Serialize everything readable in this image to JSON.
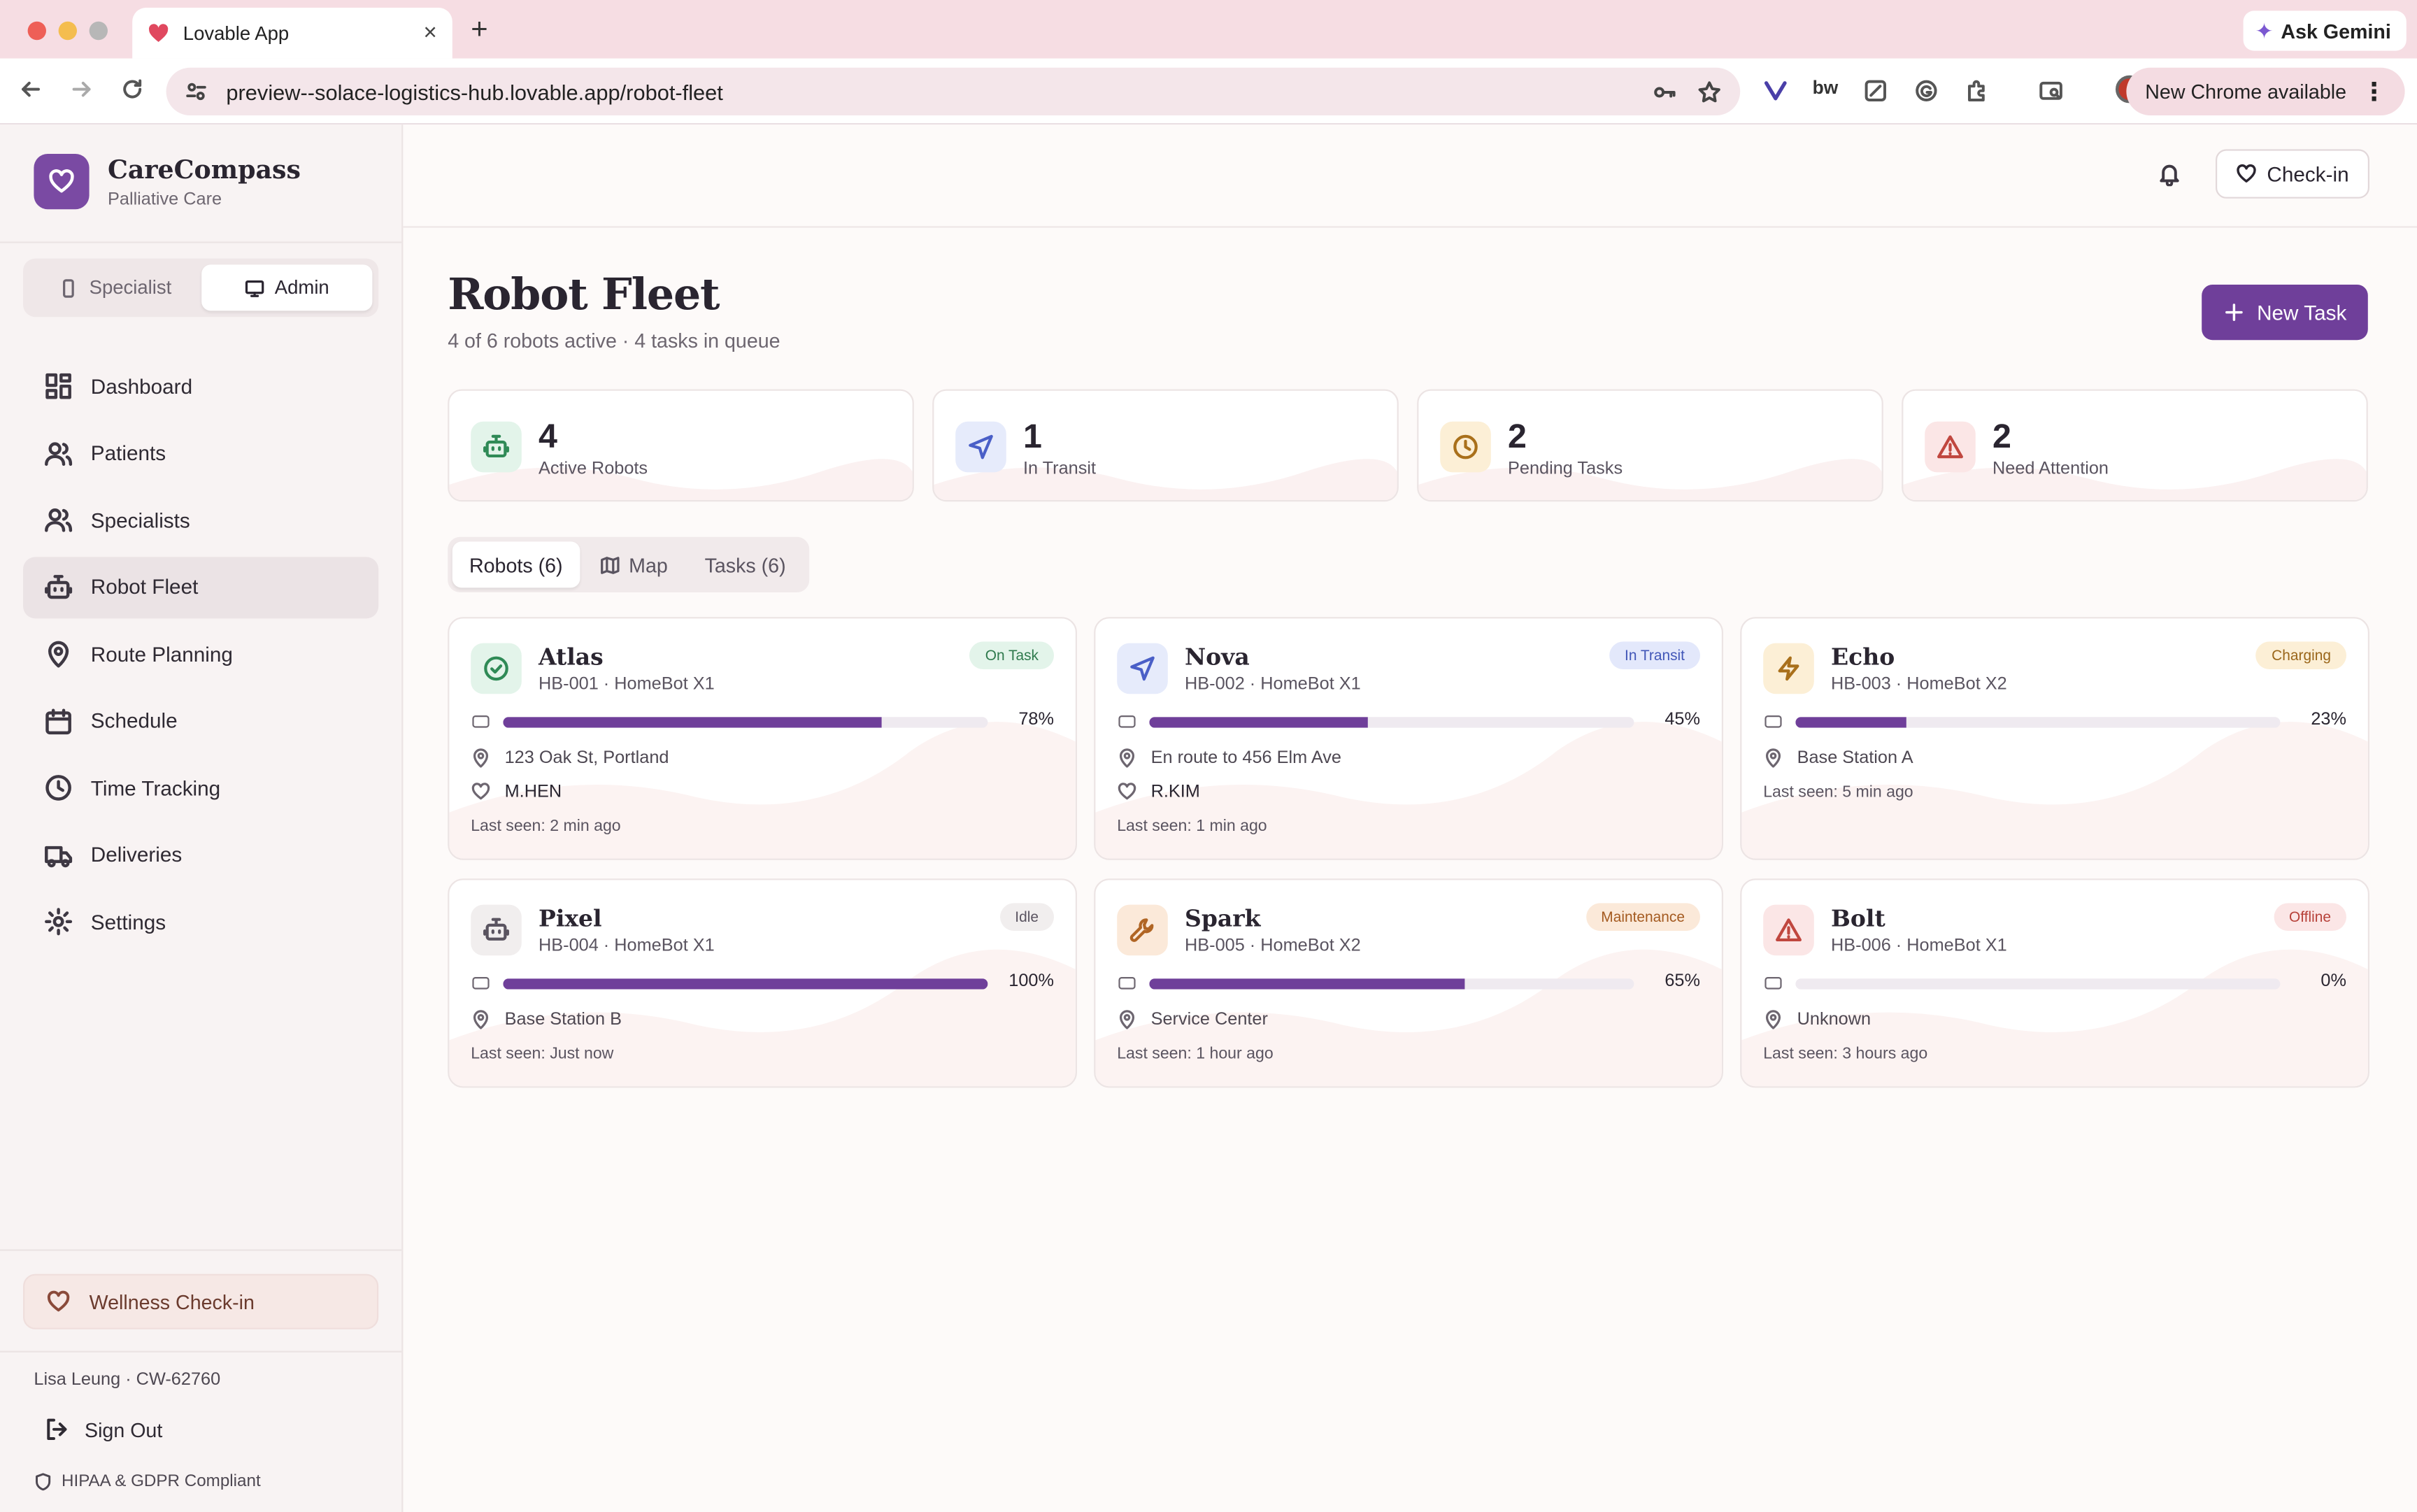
{
  "browser": {
    "tab_title": "Lovable App",
    "new_tab": "+",
    "tab_close": "×",
    "url": "preview--solace-logistics-hub.lovable.app/robot-fleet",
    "gemini_label": "Ask Gemini",
    "update_label": "New Chrome available",
    "update_menu": "⋮"
  },
  "brand": {
    "name": "CareCompass",
    "subtitle": "Palliative Care"
  },
  "roles": [
    {
      "label": "Specialist",
      "active": false
    },
    {
      "label": "Admin",
      "active": true
    }
  ],
  "nav": [
    {
      "label": "Dashboard",
      "icon": "dashboard-icon"
    },
    {
      "label": "Patients",
      "icon": "users-icon"
    },
    {
      "label": "Specialists",
      "icon": "users-icon"
    },
    {
      "label": "Robot Fleet",
      "icon": "bot-icon",
      "active": true
    },
    {
      "label": "Route Planning",
      "icon": "map-pin-icon"
    },
    {
      "label": "Schedule",
      "icon": "calendar-icon"
    },
    {
      "label": "Time Tracking",
      "icon": "clock-icon"
    },
    {
      "label": "Deliveries",
      "icon": "truck-icon"
    },
    {
      "label": "Settings",
      "icon": "gear-icon"
    }
  ],
  "sidebar_footer": {
    "wellness_label": "Wellness Check-in",
    "user_line": "Lisa Leung · CW-62760",
    "signout_label": "Sign Out",
    "compliance": "HIPAA & GDPR Compliant"
  },
  "topbar": {
    "checkin_label": "Check-in"
  },
  "page": {
    "title": "Robot Fleet",
    "subtitle": "4 of 6 robots active · 4 tasks in queue",
    "new_task_label": "New Task"
  },
  "stats": [
    {
      "value": "4",
      "label": "Active Robots",
      "icon": "bot-icon",
      "bg": "#e3f4ea",
      "fg": "#2f8a56"
    },
    {
      "value": "1",
      "label": "In Transit",
      "icon": "navigation-icon",
      "bg": "#e6ebfb",
      "fg": "#4a5fc7"
    },
    {
      "value": "2",
      "label": "Pending Tasks",
      "icon": "clock-icon",
      "bg": "#fcefd6",
      "fg": "#a9701b"
    },
    {
      "value": "2",
      "label": "Need Attention",
      "icon": "alert-icon",
      "bg": "#fbe6e6",
      "fg": "#c0473f"
    }
  ],
  "tabs": [
    {
      "label": "Robots (6)",
      "active": true
    },
    {
      "label": "Map",
      "icon": "map-icon"
    },
    {
      "label": "Tasks (6)"
    }
  ],
  "robots": [
    {
      "name": "Atlas",
      "id": "HB-001 · HomeBot X1",
      "status": "On Task",
      "status_bg": "#e3f4ea",
      "status_fg": "#2f7a4d",
      "icon": "check-circle-icon",
      "icon_bg": "#e3f4ea",
      "icon_fg": "#2f8a56",
      "battery": 78,
      "battery_label": "78%",
      "location": "123 Oak St, Portland",
      "patient": "M.HEN",
      "last_seen": "Last seen: 2 min ago"
    },
    {
      "name": "Nova",
      "id": "HB-002 · HomeBot X1",
      "status": "In Transit",
      "status_bg": "#e3e8fb",
      "status_fg": "#4257b8",
      "icon": "navigation-icon",
      "icon_bg": "#e6ebfb",
      "icon_fg": "#4a5fc7",
      "battery": 45,
      "battery_label": "45%",
      "location": "En route to 456 Elm Ave",
      "patient": "R.KIM",
      "last_seen": "Last seen: 1 min ago"
    },
    {
      "name": "Echo",
      "id": "HB-003 · HomeBot X2",
      "status": "Charging",
      "status_bg": "#fcefd6",
      "status_fg": "#9a661a",
      "icon": "zap-icon",
      "icon_bg": "#fcefd6",
      "icon_fg": "#a9701b",
      "battery": 23,
      "battery_label": "23%",
      "location": "Base Station A",
      "patient": "",
      "last_seen": "Last seen: 5 min ago"
    },
    {
      "name": "Pixel",
      "id": "HB-004 · HomeBot X1",
      "status": "Idle",
      "status_bg": "#f1eeee",
      "status_fg": "#5a5460",
      "icon": "bot-icon",
      "icon_bg": "#f1eeee",
      "icon_fg": "#5a5460",
      "battery": 100,
      "battery_label": "100%",
      "location": "Base Station B",
      "patient": "",
      "last_seen": "Last seen: Just now"
    },
    {
      "name": "Spark",
      "id": "HB-005 · HomeBot X2",
      "status": "Maintenance",
      "status_bg": "#fbe9d9",
      "status_fg": "#a45a20",
      "icon": "wrench-icon",
      "icon_bg": "#fbe9d9",
      "icon_fg": "#b06524",
      "battery": 65,
      "battery_label": "65%",
      "location": "Service Center",
      "patient": "",
      "last_seen": "Last seen: 1 hour ago"
    },
    {
      "name": "Bolt",
      "id": "HB-006 · HomeBot X1",
      "status": "Offline",
      "status_bg": "#fbe6e6",
      "status_fg": "#b7423a",
      "icon": "alert-icon",
      "icon_bg": "#fbe6e6",
      "icon_fg": "#c0473f",
      "battery": 0,
      "battery_label": "0%",
      "location": "Unknown",
      "patient": "",
      "last_seen": "Last seen: 3 hours ago"
    }
  ]
}
